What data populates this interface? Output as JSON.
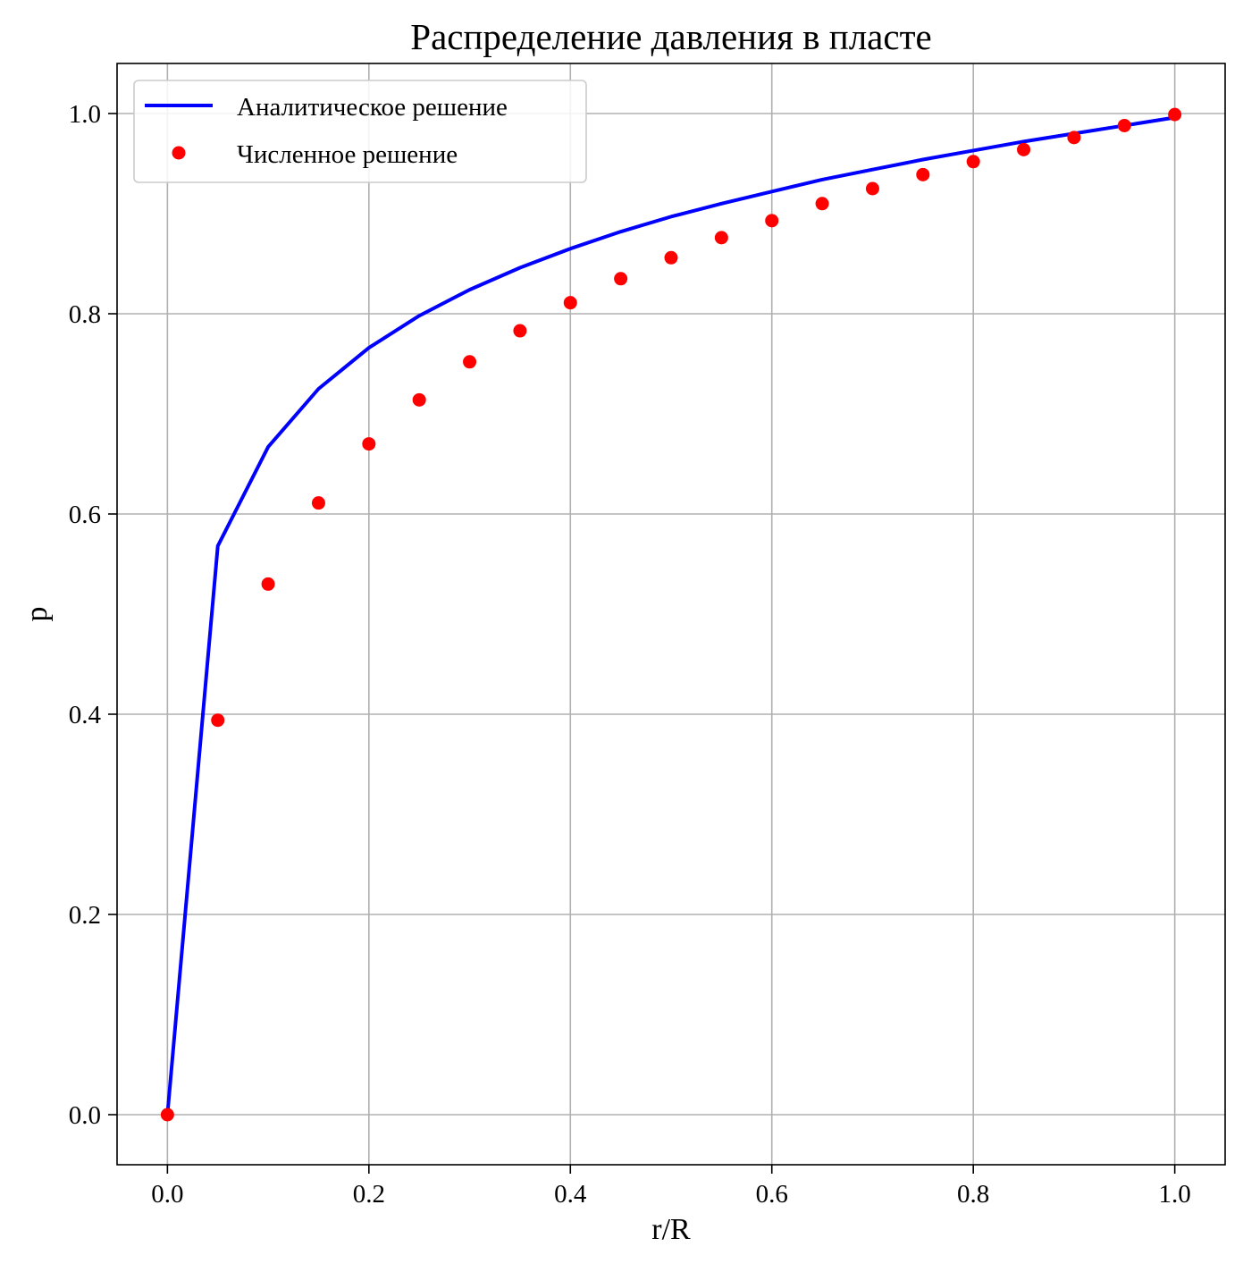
{
  "chart_data": {
    "type": "line",
    "title": "Распределение давления в пласте",
    "xlabel": "r/R",
    "ylabel": "p",
    "xlim": [
      -0.05,
      1.05
    ],
    "ylim": [
      -0.05,
      1.05
    ],
    "xticks": [
      0.0,
      0.2,
      0.4,
      0.6,
      0.8,
      1.0
    ],
    "xtick_labels": [
      "0.0",
      "0.2",
      "0.4",
      "0.6",
      "0.8",
      "1.0"
    ],
    "yticks": [
      0.0,
      0.2,
      0.4,
      0.6,
      0.8,
      1.0
    ],
    "ytick_labels": [
      "0.0",
      "0.2",
      "0.4",
      "0.6",
      "0.8",
      "1.0"
    ],
    "grid": true,
    "legend_position": "top-left",
    "series": [
      {
        "name": "Аналитическое решение",
        "style": "line",
        "color": "#0000ff",
        "x": [
          0.0,
          0.05,
          0.1,
          0.15,
          0.2,
          0.25,
          0.3,
          0.35,
          0.4,
          0.45,
          0.5,
          0.55,
          0.6,
          0.65,
          0.7,
          0.75,
          0.8,
          0.85,
          0.9,
          0.95,
          1.0
        ],
        "y": [
          0.0,
          0.568,
          0.667,
          0.725,
          0.766,
          0.798,
          0.824,
          0.846,
          0.865,
          0.882,
          0.897,
          0.91,
          0.922,
          0.934,
          0.944,
          0.954,
          0.963,
          0.972,
          0.98,
          0.988,
          0.996
        ]
      },
      {
        "name": "Численное решение",
        "style": "markers",
        "color": "#ff0000",
        "x": [
          0.0,
          0.05,
          0.1,
          0.15,
          0.2,
          0.25,
          0.3,
          0.35,
          0.4,
          0.45,
          0.5,
          0.55,
          0.6,
          0.65,
          0.7,
          0.75,
          0.8,
          0.85,
          0.9,
          0.95,
          1.0
        ],
        "y": [
          0.0,
          0.394,
          0.53,
          0.611,
          0.67,
          0.714,
          0.752,
          0.783,
          0.811,
          0.835,
          0.856,
          0.876,
          0.893,
          0.91,
          0.925,
          0.939,
          0.952,
          0.964,
          0.976,
          0.988,
          0.999
        ]
      }
    ]
  }
}
